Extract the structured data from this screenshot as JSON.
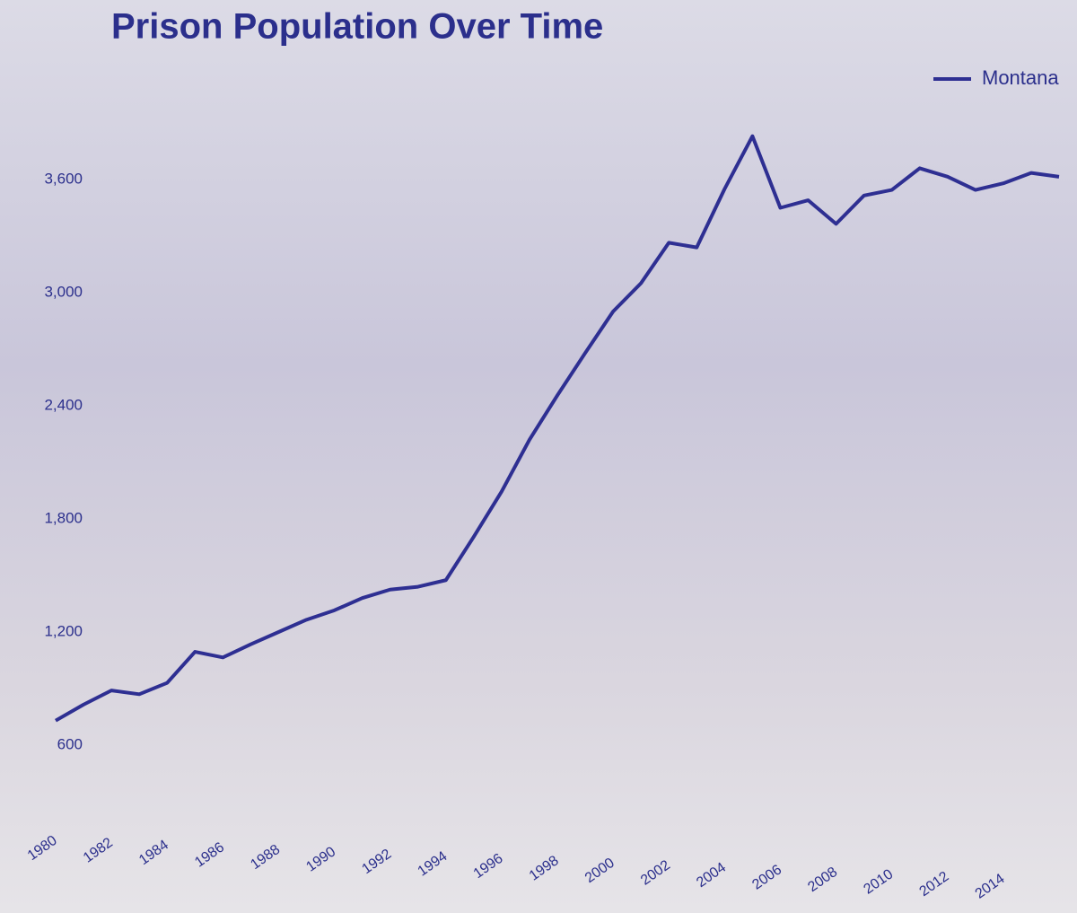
{
  "chart_data": {
    "type": "line",
    "title": "Prison Population Over Time",
    "x": [
      1980,
      1981,
      1982,
      1983,
      1984,
      1985,
      1986,
      1987,
      1988,
      1989,
      1990,
      1991,
      1992,
      1993,
      1994,
      1995,
      1996,
      1997,
      1998,
      1999,
      2000,
      2001,
      2002,
      2003,
      2004,
      2005,
      2006,
      2007,
      2008,
      2009,
      2010,
      2011,
      2012,
      2013,
      2014,
      2015,
      2016
    ],
    "series": [
      {
        "name": "Montana",
        "color": "#2e2f92",
        "values": [
          730,
          815,
          890,
          870,
          930,
          1095,
          1065,
          1135,
          1200,
          1265,
          1315,
          1380,
          1425,
          1440,
          1475,
          1705,
          1945,
          2220,
          2455,
          2680,
          2900,
          3050,
          3265,
          3240,
          3550,
          3830,
          3450,
          3490,
          3365,
          3515,
          3545,
          3660,
          3615,
          3545,
          3580,
          3635,
          3615
        ]
      }
    ],
    "xlim": [
      1980,
      2016
    ],
    "xticks": [
      1980,
      1982,
      1984,
      1986,
      1988,
      1990,
      1992,
      1994,
      1996,
      1998,
      2000,
      2002,
      2004,
      2006,
      2008,
      2010,
      2012,
      2014
    ],
    "ylim": [
      600,
      3900
    ],
    "yticks": [
      600,
      {
        "value": 1200,
        "label": "1,200"
      },
      {
        "value": 1800,
        "label": "1,800"
      },
      {
        "value": 2400,
        "label": "2,400"
      },
      {
        "value": 3000,
        "label": "3,000"
      },
      {
        "value": 3600,
        "label": "3,600"
      }
    ],
    "grid": false,
    "legend": "top-right"
  }
}
